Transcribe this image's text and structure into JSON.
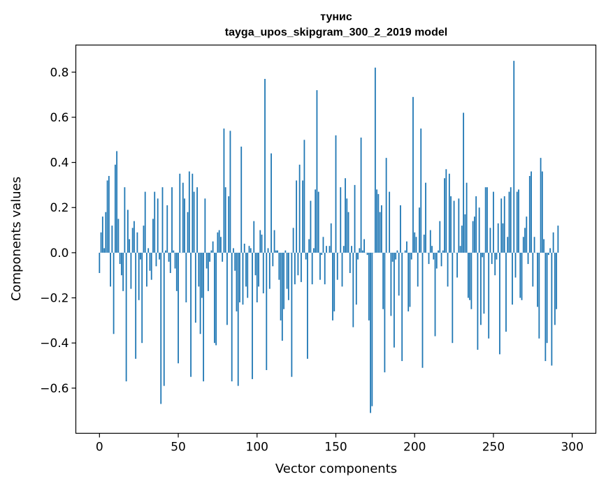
{
  "chart_data": {
    "type": "bar",
    "title": "тунис",
    "subtitle": "tayga_upos_skipgram_300_2_2019 model",
    "xlabel": "Vector components",
    "ylabel": "Components values",
    "xlim": [
      -15,
      315
    ],
    "ylim": [
      -0.8,
      0.92
    ],
    "xticks": [
      0,
      50,
      100,
      150,
      200,
      250,
      300
    ],
    "yticks": [
      -0.6,
      -0.4,
      -0.2,
      0.0,
      0.2,
      0.4,
      0.6,
      0.8
    ],
    "xtick_labels": [
      "0",
      "50",
      "100",
      "150",
      "200",
      "250",
      "300"
    ],
    "ytick_labels": [
      "−0.6",
      "−0.4",
      "−0.2",
      "0.0",
      "0.2",
      "0.4",
      "0.6",
      "0.8"
    ],
    "bar_color": "#1f77b4",
    "values": [
      -0.09,
      0.09,
      0.16,
      0.02,
      0.18,
      0.32,
      0.34,
      -0.15,
      0.12,
      -0.36,
      0.39,
      0.45,
      0.15,
      -0.05,
      -0.1,
      -0.17,
      0.29,
      -0.57,
      0.19,
      0.06,
      -0.16,
      0.11,
      0.14,
      -0.47,
      0.09,
      -0.21,
      -0.03,
      -0.4,
      0.12,
      0.27,
      -0.15,
      0.02,
      -0.08,
      -0.12,
      0.15,
      0.27,
      -0.06,
      0.24,
      -0.03,
      -0.67,
      0.29,
      -0.59,
      0.01,
      0.21,
      -0.04,
      -0.09,
      0.29,
      0.01,
      -0.07,
      -0.17,
      -0.49,
      0.35,
      0.0,
      0.31,
      0.24,
      -0.22,
      0.18,
      0.36,
      -0.55,
      0.35,
      0.27,
      -0.31,
      0.29,
      -0.15,
      -0.36,
      -0.2,
      -0.57,
      0.24,
      -0.07,
      -0.17,
      -0.04,
      0.01,
      0.05,
      -0.4,
      -0.41,
      0.09,
      0.1,
      0.07,
      -0.04,
      0.55,
      0.29,
      -0.32,
      0.25,
      0.54,
      -0.57,
      0.02,
      -0.08,
      -0.26,
      -0.59,
      -0.22,
      0.47,
      -0.23,
      0.04,
      -0.15,
      -0.2,
      0.03,
      0.02,
      -0.56,
      0.14,
      -0.1,
      -0.22,
      -0.15,
      0.1,
      0.08,
      -0.18,
      0.77,
      -0.52,
      0.02,
      -0.16,
      0.44,
      -0.06,
      0.1,
      0.01,
      0.01,
      -0.12,
      -0.3,
      -0.39,
      -0.25,
      0.01,
      -0.16,
      -0.21,
      0.0,
      -0.55,
      0.11,
      -0.14,
      0.32,
      -0.1,
      0.39,
      -0.13,
      0.32,
      0.5,
      -0.03,
      -0.47,
      0.06,
      0.23,
      -0.14,
      0.02,
      0.28,
      0.72,
      0.27,
      -0.12,
      -0.01,
      0.07,
      -0.14,
      0.03,
      0.0,
      0.03,
      0.13,
      -0.3,
      -0.26,
      0.52,
      -0.12,
      0.0,
      0.29,
      -0.15,
      0.03,
      0.33,
      0.24,
      0.18,
      -0.09,
      0.03,
      -0.33,
      0.3,
      -0.23,
      -0.03,
      0.02,
      0.51,
      0.01,
      0.06,
      0.0,
      -0.01,
      -0.3,
      -0.71,
      -0.68,
      0.0,
      0.82,
      0.28,
      0.26,
      0.18,
      0.21,
      -0.25,
      -0.53,
      0.42,
      0.0,
      0.27,
      -0.28,
      -0.04,
      -0.42,
      -0.03,
      0.01,
      -0.19,
      0.21,
      -0.48,
      0.0,
      0.01,
      0.05,
      -0.26,
      -0.24,
      -0.03,
      0.69,
      0.09,
      0.07,
      -0.15,
      0.2,
      0.55,
      -0.51,
      0.08,
      0.31,
      0.0,
      -0.05,
      0.1,
      0.03,
      -0.03,
      -0.37,
      -0.07,
      0.01,
      0.14,
      -0.06,
      0.01,
      0.33,
      0.37,
      -0.15,
      0.35,
      0.25,
      -0.4,
      0.23,
      0.0,
      -0.11,
      0.24,
      0.03,
      0.12,
      0.62,
      0.17,
      0.31,
      -0.2,
      -0.21,
      -0.25,
      0.14,
      0.16,
      0.25,
      -0.43,
      0.2,
      -0.32,
      -0.02,
      -0.27,
      0.29,
      0.29,
      -0.38,
      0.11,
      -0.05,
      0.27,
      -0.1,
      -0.03,
      0.13,
      -0.45,
      0.24,
      0.13,
      0.25,
      -0.35,
      0.07,
      0.27,
      0.29,
      -0.23,
      0.85,
      -0.11,
      0.27,
      0.28,
      -0.2,
      -0.21,
      0.07,
      0.11,
      0.16,
      -0.05,
      0.34,
      0.36,
      -0.15,
      0.07,
      0.0,
      -0.24,
      -0.38,
      0.42,
      0.36,
      0.06,
      -0.48,
      -0.4,
      -0.01,
      0.02,
      -0.5,
      0.09,
      -0.32,
      -0.25,
      0.12
    ]
  }
}
